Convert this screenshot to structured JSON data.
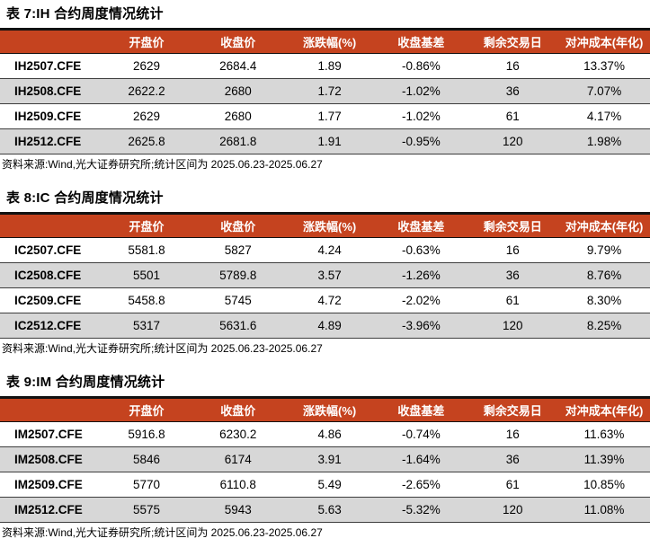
{
  "colors": {
    "header_bg": "#C5431F",
    "header_text": "#FFFFFF",
    "row_bg": "#FFFFFF",
    "row_alt_bg": "#D7D7D7",
    "border_top": "#121212",
    "row_border": "#3D3D3D",
    "text": "#000000"
  },
  "columns": [
    "",
    "开盘价",
    "收盘价",
    "涨跌幅(%)",
    "收盘基差",
    "剩余交易日",
    "对冲成本(年化)"
  ],
  "source_note": "资料来源:Wind,光大证券研究所;统计区间为 2025.06.23-2025.06.27",
  "tables": [
    {
      "title": "表 7:IH 合约周度情况统计",
      "rows": [
        {
          "cells": [
            "IH2507.CFE",
            "2629",
            "2684.4",
            "1.89",
            "-0.86%",
            "16",
            "13.37%"
          ]
        },
        {
          "cells": [
            "IH2508.CFE",
            "2622.2",
            "2680",
            "1.72",
            "-1.02%",
            "36",
            "7.07%"
          ]
        },
        {
          "cells": [
            "IH2509.CFE",
            "2629",
            "2680",
            "1.77",
            "-1.02%",
            "61",
            "4.17%"
          ]
        },
        {
          "cells": [
            "IH2512.CFE",
            "2625.8",
            "2681.8",
            "1.91",
            "-0.95%",
            "120",
            "1.98%"
          ]
        }
      ]
    },
    {
      "title": "表 8:IC 合约周度情况统计",
      "rows": [
        {
          "cells": [
            "IC2507.CFE",
            "5581.8",
            "5827",
            "4.24",
            "-0.63%",
            "16",
            "9.79%"
          ]
        },
        {
          "cells": [
            "IC2508.CFE",
            "5501",
            "5789.8",
            "3.57",
            "-1.26%",
            "36",
            "8.76%"
          ]
        },
        {
          "cells": [
            "IC2509.CFE",
            "5458.8",
            "5745",
            "4.72",
            "-2.02%",
            "61",
            "8.30%"
          ]
        },
        {
          "cells": [
            "IC2512.CFE",
            "5317",
            "5631.6",
            "4.89",
            "-3.96%",
            "120",
            "8.25%"
          ]
        }
      ]
    },
    {
      "title": "表 9:IM 合约周度情况统计",
      "rows": [
        {
          "cells": [
            "IM2507.CFE",
            "5916.8",
            "6230.2",
            "4.86",
            "-0.74%",
            "16",
            "11.63%"
          ]
        },
        {
          "cells": [
            "IM2508.CFE",
            "5846",
            "6174",
            "3.91",
            "-1.64%",
            "36",
            "11.39%"
          ]
        },
        {
          "cells": [
            "IM2509.CFE",
            "5770",
            "6110.8",
            "5.49",
            "-2.65%",
            "61",
            "10.85%"
          ]
        },
        {
          "cells": [
            "IM2512.CFE",
            "5575",
            "5943",
            "5.63",
            "-5.32%",
            "120",
            "11.08%"
          ]
        }
      ]
    }
  ]
}
